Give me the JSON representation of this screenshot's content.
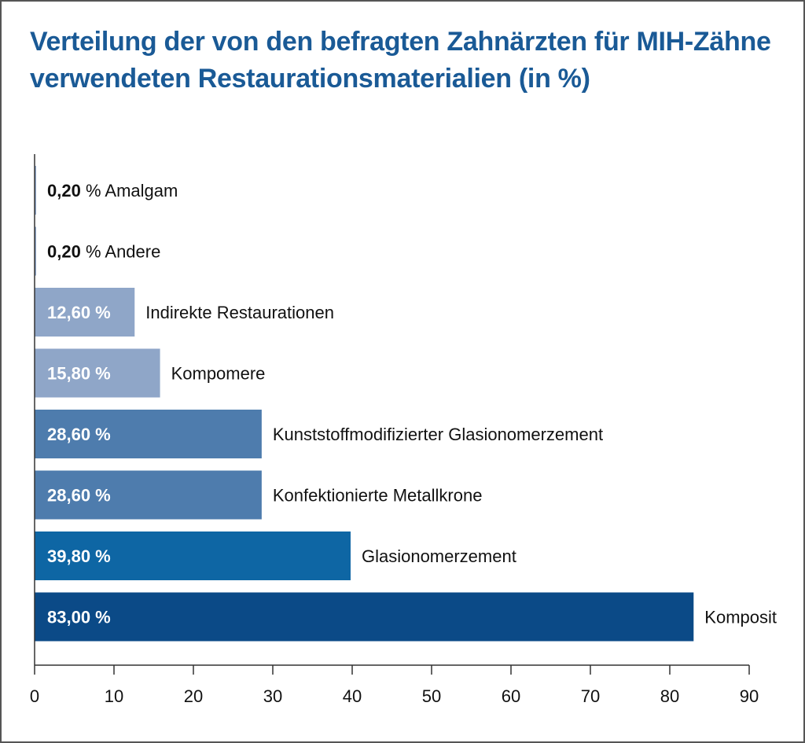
{
  "chart_data": {
    "type": "bar",
    "orientation": "horizontal",
    "title": "Verteilung der von den befragten Zahnärzten für MIH-Zähne verwendeten Restaurationsmaterialien (in %)",
    "categories": [
      "Amalgam",
      "Andere",
      "Indirekte Restaurationen",
      "Kompomere",
      "Kunststoffmodifizierter Glasionomerzement",
      "Konfektionierte Metallkrone",
      "Glasionomerzement",
      "Komposit"
    ],
    "values": [
      0.2,
      0.2,
      12.6,
      15.8,
      28.6,
      28.6,
      39.8,
      83.0
    ],
    "value_labels": [
      "0,20",
      "0,20",
      "12,60",
      "15,80",
      "28,60",
      "28,60",
      "39,80",
      "83,00"
    ],
    "value_suffix": " %",
    "bar_colors": [
      "#8fa6c8",
      "#8fa6c8",
      "#8fa6c8",
      "#8fa6c8",
      "#4e7cad",
      "#4e7cad",
      "#0e66a4",
      "#0b4a87"
    ],
    "xlim": [
      0,
      90
    ],
    "xticks": [
      0,
      10,
      20,
      30,
      40,
      50,
      60,
      70,
      80,
      90
    ],
    "xlabel": "",
    "ylabel": "",
    "grid": false,
    "legend": "none"
  },
  "colors": {
    "title": "#1a5a96",
    "frame": "#555555",
    "axis": "#333333"
  }
}
